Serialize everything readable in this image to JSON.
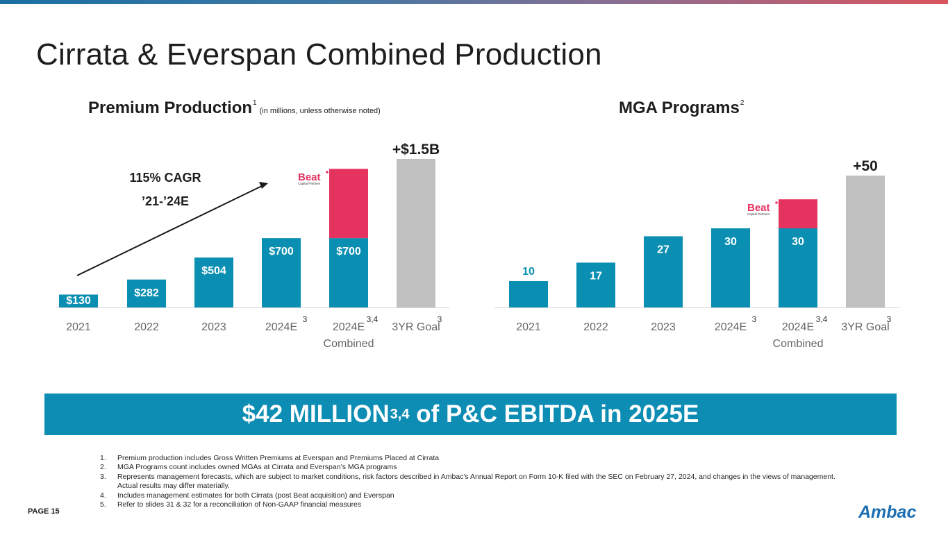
{
  "page": {
    "title": "Cirrata & Everspan Combined Production",
    "page_number": "PAGE 15",
    "brand": "Ambac",
    "colors": {
      "teal": "#0a8fb3",
      "pink": "#e4335f",
      "gray": "#c0c0c0",
      "banner": "#0d8db4",
      "brand_blue": "#1c6fb3"
    }
  },
  "left_section": {
    "title": "Premium Production",
    "title_sup": "1",
    "note": "(in millions, unless otherwise noted)"
  },
  "right_section": {
    "title": "MGA Programs",
    "title_sup": "2"
  },
  "banner": {
    "lead": "$42 MILLION",
    "sup": "3,4",
    "rest": " of P&C EBITDA in 2025E"
  },
  "footnotes": [
    {
      "num": "1.",
      "text": "Premium production includes Gross Written Premiums at Everspan and Premiums Placed at Cirrata"
    },
    {
      "num": "2.",
      "text": "MGA Programs count includes owned MGAs at Cirrata and Everspan’s MGA programs"
    },
    {
      "num": "3.",
      "text": "Represents management forecasts, which are subject to market conditions, risk factors described in Ambac's Annual Report on Form 10-K filed with the SEC on February 27, 2024, and changes in the views of management.  Actual results may differ materially."
    },
    {
      "num": "4.",
      "text": "Includes management estimates for both Cirrata (post Beat acquisition) and Everspan"
    },
    {
      "num": "5.",
      "text": "Refer to slides 31 & 32 for a reconciliation of Non-GAAP financial measures"
    }
  ],
  "chart_data": [
    {
      "type": "bar",
      "title": "Premium Production",
      "unit_note": "(in millions, unless otherwise noted)",
      "categories": [
        "2021",
        "2022",
        "2023",
        "2024E",
        "2024E",
        "3YR Goal"
      ],
      "category_sups": [
        "",
        "",
        "",
        "3",
        "3,4",
        "3"
      ],
      "category_sublabels": [
        "",
        "",
        "",
        "",
        "Combined",
        ""
      ],
      "series": [
        {
          "name": "Cirrata & Everspan",
          "values": [
            130,
            282,
            504,
            700,
            700,
            0
          ]
        },
        {
          "name": "Beat Capital Partners",
          "values": [
            0,
            0,
            0,
            0,
            700,
            0
          ]
        },
        {
          "name": "3YR Goal",
          "values": [
            0,
            0,
            0,
            0,
            0,
            1500
          ]
        }
      ],
      "data_labels": [
        "$130",
        "$282",
        "$504",
        "$700",
        "$700",
        ""
      ],
      "top_annotation": "+$1.5B",
      "cagr_annotation": [
        "115% CAGR",
        "’21-’24E"
      ],
      "logo_text": "Beat",
      "logo_subtext": "Capital Partners",
      "ylim": [
        0,
        1500
      ]
    },
    {
      "type": "bar",
      "title": "MGA Programs",
      "categories": [
        "2021",
        "2022",
        "2023",
        "2024E",
        "2024E",
        "3YR Goal"
      ],
      "category_sups": [
        "",
        "",
        "",
        "3",
        "3,4",
        "3"
      ],
      "category_sublabels": [
        "",
        "",
        "",
        "",
        "Combined",
        ""
      ],
      "series": [
        {
          "name": "Cirrata & Everspan",
          "values": [
            10,
            17,
            27,
            30,
            30,
            0
          ]
        },
        {
          "name": "Beat Capital Partners",
          "values": [
            0,
            0,
            0,
            0,
            11,
            0
          ]
        },
        {
          "name": "3YR Goal",
          "values": [
            0,
            0,
            0,
            0,
            0,
            50
          ]
        }
      ],
      "data_labels": [
        "10",
        "17",
        "27",
        "30",
        "30",
        ""
      ],
      "top_annotation": "+50",
      "logo_text": "Beat",
      "logo_subtext": "Capital Partners",
      "ylim": [
        0,
        50
      ]
    }
  ]
}
